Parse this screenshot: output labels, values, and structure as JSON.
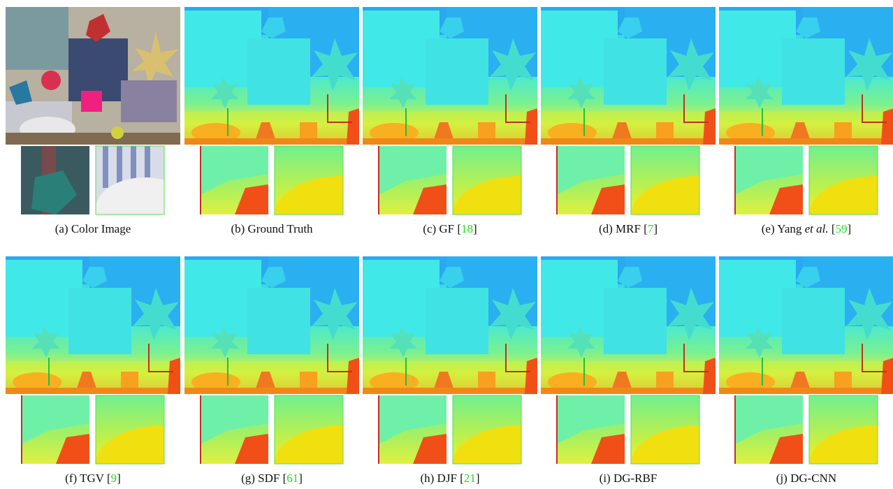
{
  "figure": {
    "panels": [
      {
        "caption": [
          {
            "text": "(a) Color Image",
            "style": "plain"
          }
        ]
      },
      {
        "caption": [
          {
            "text": "(b) Ground Truth",
            "style": "plain"
          }
        ]
      },
      {
        "caption": [
          {
            "text": "(c) GF [",
            "style": "plain"
          },
          {
            "text": "18",
            "style": "ref"
          },
          {
            "text": "]",
            "style": "plain"
          }
        ]
      },
      {
        "caption": [
          {
            "text": "(d) MRF [",
            "style": "plain"
          },
          {
            "text": "7",
            "style": "ref"
          },
          {
            "text": "]",
            "style": "plain"
          }
        ]
      },
      {
        "caption": [
          {
            "text": "(e) Yang ",
            "style": "plain"
          },
          {
            "text": "et al.",
            "style": "italic"
          },
          {
            "text": " [",
            "style": "plain"
          },
          {
            "text": "59",
            "style": "ref"
          },
          {
            "text": "]",
            "style": "plain"
          }
        ]
      },
      {
        "caption": [
          {
            "text": "(f) TGV [",
            "style": "plain"
          },
          {
            "text": "9",
            "style": "ref"
          },
          {
            "text": "]",
            "style": "plain"
          }
        ]
      },
      {
        "caption": [
          {
            "text": "(g) SDF [",
            "style": "plain"
          },
          {
            "text": "61",
            "style": "ref"
          },
          {
            "text": "]",
            "style": "plain"
          }
        ]
      },
      {
        "caption": [
          {
            "text": "(h) DJF [",
            "style": "plain"
          },
          {
            "text": "21",
            "style": "ref"
          },
          {
            "text": "]",
            "style": "plain"
          }
        ]
      },
      {
        "caption": [
          {
            "text": "(i) DG-RBF",
            "style": "plain"
          }
        ]
      },
      {
        "caption": [
          {
            "text": "(j) DG-CNN",
            "style": "plain"
          }
        ]
      }
    ]
  }
}
